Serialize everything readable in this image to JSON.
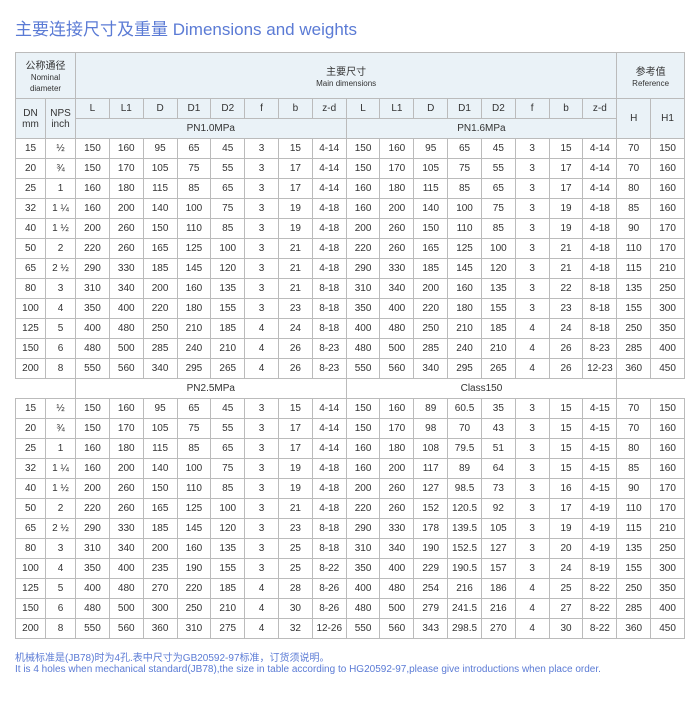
{
  "title_cn": "主要连接尺寸及重量",
  "title_en": "Dimensions and weights",
  "header": {
    "nominal_cn": "公称通径",
    "nominal_en": "Nominal diameter",
    "main_cn": "主要尺寸",
    "main_en": "Main dimensions",
    "ref_cn": "参考值",
    "ref_en": "Reference",
    "dn": "DN mm",
    "nps": "NPS inch",
    "cols": [
      "L",
      "L1",
      "D",
      "D1",
      "D2",
      "f",
      "b",
      "z-d",
      "L",
      "L1",
      "D",
      "D1",
      "D2",
      "f",
      "b",
      "z-d",
      "H",
      "H1"
    ],
    "pn10": "PN1.0MPa",
    "pn16": "PN1.6MPa",
    "pn25": "PN2.5MPa",
    "cl150": "Class150"
  },
  "rows1": [
    [
      "15",
      "½",
      "150",
      "160",
      "95",
      "65",
      "45",
      "3",
      "15",
      "4-14",
      "150",
      "160",
      "95",
      "65",
      "45",
      "3",
      "15",
      "4-14",
      "70",
      "150"
    ],
    [
      "20",
      "¾",
      "150",
      "170",
      "105",
      "75",
      "55",
      "3",
      "17",
      "4-14",
      "150",
      "170",
      "105",
      "75",
      "55",
      "3",
      "17",
      "4-14",
      "70",
      "160"
    ],
    [
      "25",
      "1",
      "160",
      "180",
      "115",
      "85",
      "65",
      "3",
      "17",
      "4-14",
      "160",
      "180",
      "115",
      "85",
      "65",
      "3",
      "17",
      "4-14",
      "80",
      "160"
    ],
    [
      "32",
      "1 ¼",
      "160",
      "200",
      "140",
      "100",
      "75",
      "3",
      "19",
      "4-18",
      "160",
      "200",
      "140",
      "100",
      "75",
      "3",
      "19",
      "4-18",
      "85",
      "160"
    ],
    [
      "40",
      "1 ½",
      "200",
      "260",
      "150",
      "110",
      "85",
      "3",
      "19",
      "4-18",
      "200",
      "260",
      "150",
      "110",
      "85",
      "3",
      "19",
      "4-18",
      "90",
      "170"
    ],
    [
      "50",
      "2",
      "220",
      "260",
      "165",
      "125",
      "100",
      "3",
      "21",
      "4-18",
      "220",
      "260",
      "165",
      "125",
      "100",
      "3",
      "21",
      "4-18",
      "110",
      "170"
    ],
    [
      "65",
      "2 ½",
      "290",
      "330",
      "185",
      "145",
      "120",
      "3",
      "21",
      "4-18",
      "290",
      "330",
      "185",
      "145",
      "120",
      "3",
      "21",
      "4-18",
      "115",
      "210"
    ],
    [
      "80",
      "3",
      "310",
      "340",
      "200",
      "160",
      "135",
      "3",
      "21",
      "8-18",
      "310",
      "340",
      "200",
      "160",
      "135",
      "3",
      "22",
      "8-18",
      "135",
      "250"
    ],
    [
      "100",
      "4",
      "350",
      "400",
      "220",
      "180",
      "155",
      "3",
      "23",
      "8-18",
      "350",
      "400",
      "220",
      "180",
      "155",
      "3",
      "23",
      "8-18",
      "155",
      "300"
    ],
    [
      "125",
      "5",
      "400",
      "480",
      "250",
      "210",
      "185",
      "4",
      "24",
      "8-18",
      "400",
      "480",
      "250",
      "210",
      "185",
      "4",
      "24",
      "8-18",
      "250",
      "350"
    ],
    [
      "150",
      "6",
      "480",
      "500",
      "285",
      "240",
      "210",
      "4",
      "26",
      "8-23",
      "480",
      "500",
      "285",
      "240",
      "210",
      "4",
      "26",
      "8-23",
      "285",
      "400"
    ],
    [
      "200",
      "8",
      "550",
      "560",
      "340",
      "295",
      "265",
      "4",
      "26",
      "8-23",
      "550",
      "560",
      "340",
      "295",
      "265",
      "4",
      "26",
      "12-23",
      "360",
      "450"
    ]
  ],
  "rows2": [
    [
      "15",
      "½",
      "150",
      "160",
      "95",
      "65",
      "45",
      "3",
      "15",
      "4-14",
      "150",
      "160",
      "89",
      "60.5",
      "35",
      "3",
      "15",
      "4-15",
      "70",
      "150"
    ],
    [
      "20",
      "¾",
      "150",
      "170",
      "105",
      "75",
      "55",
      "3",
      "17",
      "4-14",
      "150",
      "170",
      "98",
      "70",
      "43",
      "3",
      "15",
      "4-15",
      "70",
      "160"
    ],
    [
      "25",
      "1",
      "160",
      "180",
      "115",
      "85",
      "65",
      "3",
      "17",
      "4-14",
      "160",
      "180",
      "108",
      "79.5",
      "51",
      "3",
      "15",
      "4-15",
      "80",
      "160"
    ],
    [
      "32",
      "1 ¼",
      "160",
      "200",
      "140",
      "100",
      "75",
      "3",
      "19",
      "4-18",
      "160",
      "200",
      "117",
      "89",
      "64",
      "3",
      "15",
      "4-15",
      "85",
      "160"
    ],
    [
      "40",
      "1 ½",
      "200",
      "260",
      "150",
      "110",
      "85",
      "3",
      "19",
      "4-18",
      "200",
      "260",
      "127",
      "98.5",
      "73",
      "3",
      "16",
      "4-15",
      "90",
      "170"
    ],
    [
      "50",
      "2",
      "220",
      "260",
      "165",
      "125",
      "100",
      "3",
      "21",
      "4-18",
      "220",
      "260",
      "152",
      "120.5",
      "92",
      "3",
      "17",
      "4-19",
      "110",
      "170"
    ],
    [
      "65",
      "2 ½",
      "290",
      "330",
      "185",
      "145",
      "120",
      "3",
      "23",
      "8-18",
      "290",
      "330",
      "178",
      "139.5",
      "105",
      "3",
      "19",
      "4-19",
      "115",
      "210"
    ],
    [
      "80",
      "3",
      "310",
      "340",
      "200",
      "160",
      "135",
      "3",
      "25",
      "8-18",
      "310",
      "340",
      "190",
      "152.5",
      "127",
      "3",
      "20",
      "4-19",
      "135",
      "250"
    ],
    [
      "100",
      "4",
      "350",
      "400",
      "235",
      "190",
      "155",
      "3",
      "25",
      "8-22",
      "350",
      "400",
      "229",
      "190.5",
      "157",
      "3",
      "24",
      "8-19",
      "155",
      "300"
    ],
    [
      "125",
      "5",
      "400",
      "480",
      "270",
      "220",
      "185",
      "4",
      "28",
      "8-26",
      "400",
      "480",
      "254",
      "216",
      "186",
      "4",
      "25",
      "8-22",
      "250",
      "350"
    ],
    [
      "150",
      "6",
      "480",
      "500",
      "300",
      "250",
      "210",
      "4",
      "30",
      "8-26",
      "480",
      "500",
      "279",
      "241.5",
      "216",
      "4",
      "27",
      "8-22",
      "285",
      "400"
    ],
    [
      "200",
      "8",
      "550",
      "560",
      "360",
      "310",
      "275",
      "4",
      "32",
      "12-26",
      "550",
      "560",
      "343",
      "298.5",
      "270",
      "4",
      "30",
      "8-22",
      "360",
      "450"
    ]
  ],
  "footnote_cn": "机械标准是(JB78)时为4孔.表中尺寸为GB20592-97标准，订货须说明。",
  "footnote_en": "It is 4 holes when mechanical standard(JB78),the size in table according to HG20592-97,please give introductions when place order."
}
